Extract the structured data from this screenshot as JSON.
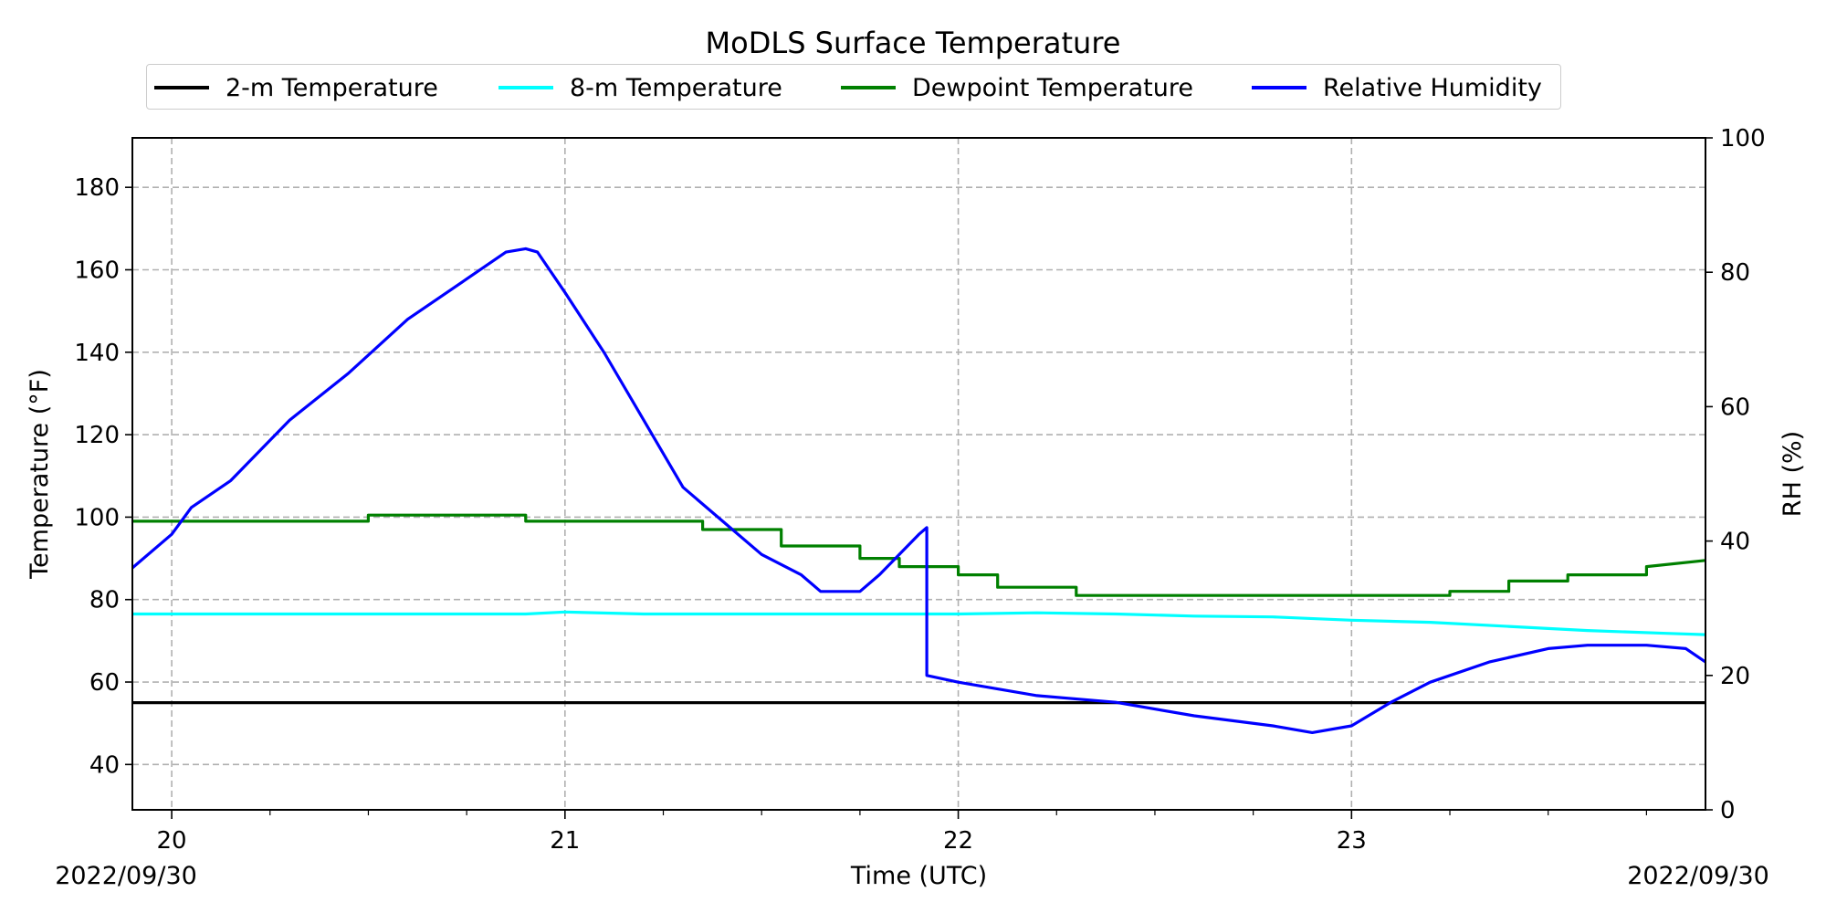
{
  "chart_data": {
    "type": "line",
    "title": "MoDLS Surface Temperature",
    "xlabel": "Time (UTC)",
    "ylabel": "Temperature ($^\\circ$F)",
    "ylabel_display": "Temperature (°F)",
    "y2label": "RH (%)",
    "x_units": "hours since 2022/09/30 19:54 UTC",
    "xlim": [
      -0.1,
      3.9
    ],
    "ylim": [
      29,
      192
    ],
    "y2lim": [
      0,
      100
    ],
    "x_ticks": [
      {
        "value": 0,
        "label": "20"
      },
      {
        "value": 1,
        "label": "21"
      },
      {
        "value": 2,
        "label": "22"
      },
      {
        "value": 3,
        "label": "23"
      }
    ],
    "y_ticks": [
      40,
      60,
      80,
      100,
      120,
      140,
      160,
      180
    ],
    "y2_ticks": [
      0,
      20,
      40,
      60,
      80,
      100
    ],
    "date_left": "2022/09/30",
    "date_right": "2022/09/30",
    "grid": true,
    "legend_position": "top-center",
    "series": [
      {
        "name": "2-m Temperature",
        "axis": "left",
        "color": "#000000",
        "x": [
          -0.1,
          3.9
        ],
        "y": [
          55,
          55
        ]
      },
      {
        "name": "8-m Temperature",
        "axis": "left",
        "color": "#00ffff",
        "x": [
          -0.1,
          0.1,
          0.3,
          0.5,
          0.7,
          0.9,
          1.0,
          1.2,
          1.4,
          1.6,
          1.8,
          2.0,
          2.2,
          2.4,
          2.6,
          2.8,
          3.0,
          3.2,
          3.4,
          3.6,
          3.8,
          3.9
        ],
        "y": [
          76.5,
          76.5,
          76.5,
          76.5,
          76.5,
          76.5,
          77,
          76.5,
          76.5,
          76.5,
          76.5,
          76.5,
          76.8,
          76.5,
          76,
          75.8,
          75,
          74.5,
          73.5,
          72.5,
          71.8,
          71.5
        ]
      },
      {
        "name": "Dewpoint Temperature",
        "axis": "left",
        "color": "#008000",
        "x": [
          -0.1,
          0.5,
          0.5,
          0.9,
          0.9,
          1.35,
          1.35,
          1.55,
          1.55,
          1.75,
          1.75,
          1.85,
          1.85,
          2.0,
          2.0,
          2.1,
          2.1,
          2.3,
          2.3,
          2.5,
          2.5,
          3.0,
          3.0,
          3.25,
          3.25,
          3.4,
          3.4,
          3.55,
          3.55,
          3.75,
          3.75,
          3.9
        ],
        "y": [
          99,
          99,
          100.5,
          100.5,
          99,
          99,
          97,
          97,
          93,
          93,
          90,
          90,
          88,
          88,
          86,
          86,
          83,
          83,
          81,
          81,
          81,
          81,
          81,
          81,
          82,
          82,
          84.5,
          84.5,
          86,
          86,
          88,
          89.5
        ]
      },
      {
        "name": "Relative Humidity",
        "axis": "right",
        "color": "#0000ff",
        "x": [
          -0.1,
          0.0,
          0.05,
          0.15,
          0.3,
          0.45,
          0.6,
          0.75,
          0.85,
          0.9,
          0.93,
          1.0,
          1.1,
          1.2,
          1.3,
          1.4,
          1.5,
          1.6,
          1.65,
          1.75,
          1.8,
          1.9,
          1.92,
          1.92,
          2.0,
          2.2,
          2.4,
          2.6,
          2.8,
          2.9,
          3.0,
          3.1,
          3.2,
          3.35,
          3.5,
          3.6,
          3.75,
          3.85,
          3.9
        ],
        "y": [
          36,
          41,
          45,
          49,
          58,
          65,
          73,
          79,
          83,
          83.5,
          83,
          77,
          68,
          58,
          48,
          43,
          38,
          35,
          32.5,
          32.5,
          35,
          41,
          42,
          20,
          19,
          17,
          16,
          14,
          12.5,
          11.5,
          12.5,
          16,
          19,
          22,
          24,
          24.5,
          24.5,
          24,
          22
        ]
      }
    ]
  }
}
